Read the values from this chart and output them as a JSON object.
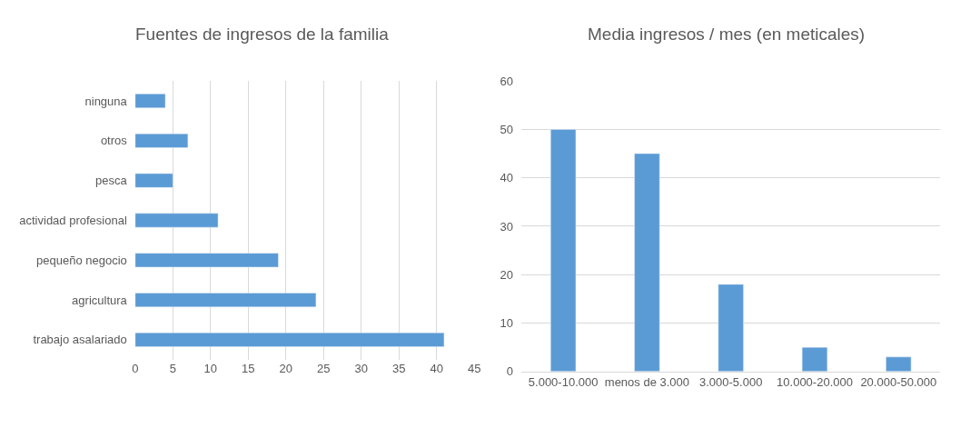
{
  "chart_data": [
    {
      "type": "bar",
      "title": "Fuentes de ingresos de la familia",
      "orientation": "horizontal",
      "categories": [
        "ninguna",
        "otros",
        "pesca",
        "actividad profesional",
        "pequeño negocio",
        "agricultura",
        "trabajo asalariado"
      ],
      "values": [
        4,
        7,
        5,
        11,
        19,
        24,
        41
      ],
      "color": "#5b9bd5",
      "xlim": [
        0,
        45
      ],
      "xticks": [
        0,
        5,
        10,
        15,
        20,
        25,
        30,
        35,
        40,
        45
      ],
      "grid": "x"
    },
    {
      "type": "bar",
      "title": "Media ingresos / mes (en meticales)",
      "categories": [
        "5.000-10.000",
        "menos de 3.000",
        "3.000-5.000",
        "10.000-20.000",
        "20.000-50.000"
      ],
      "values": [
        50,
        45,
        18,
        5,
        3
      ],
      "color": "#5b9bd5",
      "ylim": [
        0,
        60
      ],
      "yticks": [
        0,
        10,
        20,
        30,
        40,
        50,
        60
      ],
      "grid": "y"
    }
  ]
}
